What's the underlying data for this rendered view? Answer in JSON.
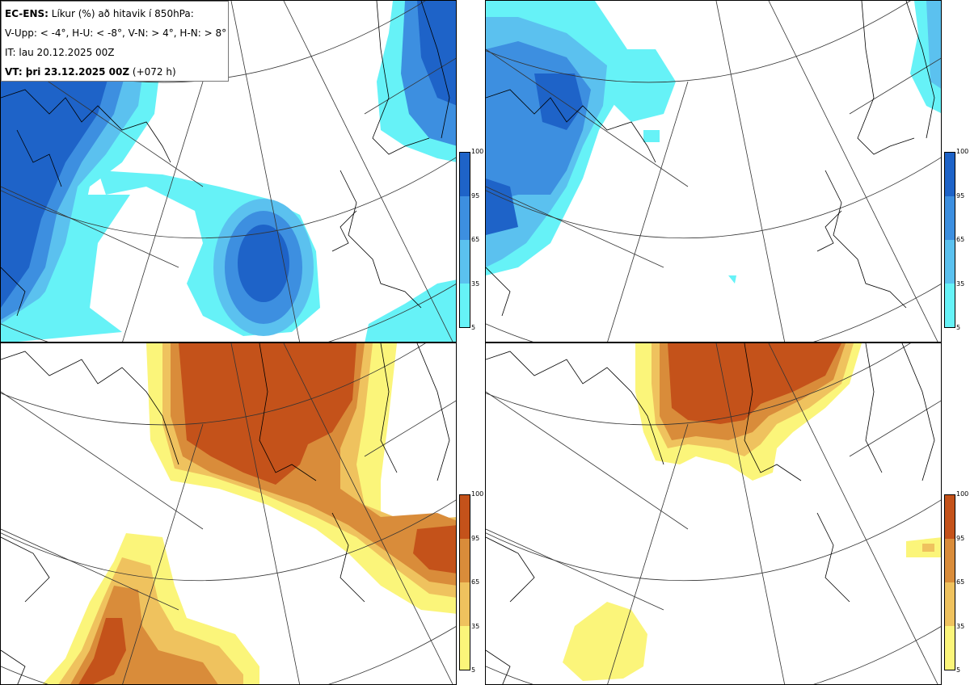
{
  "info": {
    "line1_bold": "EC-ENS:",
    "line1_rest": "Líkur (%) að hitavik í 850hPa:",
    "line2": "V-Upp: < -4°, H-U: < -8°, V-N: > 4°, H-N: > 8°",
    "line3": "IT: lau 20.12.2025 00Z",
    "line4_bold": "VT: þri 23.12.2025 00Z",
    "line4_rest": "(+072 h)"
  },
  "colorbar": {
    "ticks": [
      "100",
      "95",
      "65",
      "35",
      "5"
    ],
    "cold_colors": [
      "#1e63c8",
      "#3d8fe0",
      "#5bc1ef",
      "#66f2f7"
    ],
    "warm_colors": [
      "#c4521a",
      "#d98c3a",
      "#efc25e",
      "#fbf57a"
    ]
  },
  "panels": [
    {
      "id": "top-left",
      "variable": "cold",
      "threshold": "< -4°"
    },
    {
      "id": "top-right",
      "variable": "cold",
      "threshold": "< -8°"
    },
    {
      "id": "bottom-left",
      "variable": "warm",
      "threshold": "> 4°"
    },
    {
      "id": "bottom-right",
      "variable": "warm",
      "threshold": "> 8°"
    }
  ]
}
